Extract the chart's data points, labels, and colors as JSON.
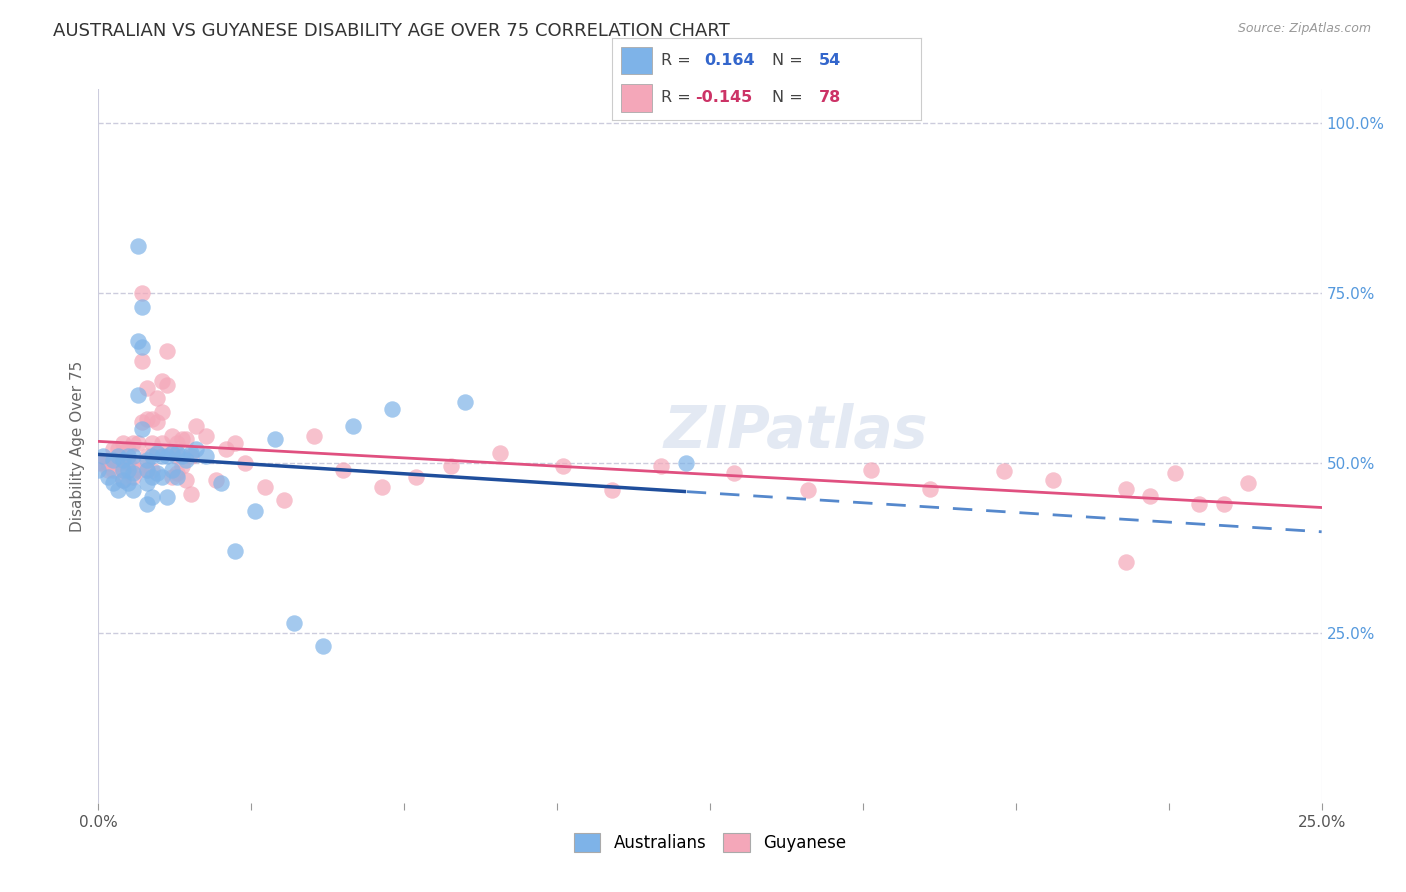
{
  "title": "AUSTRALIAN VS GUYANESE DISABILITY AGE OVER 75 CORRELATION CHART",
  "source": "Source: ZipAtlas.com",
  "ylabel": "Disability Age Over 75",
  "legend_blue_r": "0.164",
  "legend_blue_n": "54",
  "legend_pink_r": "-0.145",
  "legend_pink_n": "78",
  "legend_label_blue": "Australians",
  "legend_label_pink": "Guyanese",
  "blue_color": "#7EB3E8",
  "pink_color": "#F4A7B9",
  "trendline_blue_solid_color": "#1F4E9C",
  "trendline_blue_dash_color": "#5588CC",
  "trendline_pink_color": "#E05080",
  "background_color": "#FFFFFF",
  "grid_color": "#CCCCDD",
  "right_tick_color": "#5599DD",
  "watermark": "ZIPatlas",
  "xlim": [
    0.0,
    0.25
  ],
  "ylim": [
    0.0,
    1.05
  ],
  "yticks_right": [
    0.25,
    0.5,
    0.75,
    1.0
  ],
  "ytick_right_labels": [
    "25.0%",
    "50.0%",
    "75.0%",
    "100.0%"
  ],
  "blue_scatter_x": [
    0.0,
    0.001,
    0.002,
    0.003,
    0.003,
    0.004,
    0.004,
    0.005,
    0.005,
    0.005,
    0.006,
    0.006,
    0.006,
    0.007,
    0.007,
    0.007,
    0.008,
    0.008,
    0.008,
    0.009,
    0.009,
    0.009,
    0.01,
    0.01,
    0.01,
    0.01,
    0.011,
    0.011,
    0.011,
    0.012,
    0.012,
    0.013,
    0.013,
    0.014,
    0.014,
    0.015,
    0.015,
    0.016,
    0.016,
    0.017,
    0.018,
    0.019,
    0.02,
    0.022,
    0.025,
    0.028,
    0.032,
    0.036,
    0.04,
    0.046,
    0.052,
    0.06,
    0.075,
    0.12
  ],
  "blue_scatter_y": [
    0.49,
    0.51,
    0.48,
    0.505,
    0.47,
    0.51,
    0.46,
    0.505,
    0.49,
    0.475,
    0.51,
    0.49,
    0.47,
    0.51,
    0.485,
    0.46,
    0.82,
    0.68,
    0.6,
    0.73,
    0.67,
    0.55,
    0.505,
    0.49,
    0.47,
    0.44,
    0.51,
    0.48,
    0.45,
    0.515,
    0.485,
    0.51,
    0.48,
    0.51,
    0.45,
    0.515,
    0.49,
    0.515,
    0.48,
    0.51,
    0.505,
    0.515,
    0.52,
    0.51,
    0.47,
    0.37,
    0.43,
    0.535,
    0.265,
    0.23,
    0.555,
    0.58,
    0.59,
    0.5
  ],
  "pink_scatter_x": [
    0.0,
    0.001,
    0.002,
    0.002,
    0.003,
    0.003,
    0.004,
    0.004,
    0.005,
    0.005,
    0.005,
    0.006,
    0.006,
    0.007,
    0.007,
    0.007,
    0.008,
    0.008,
    0.009,
    0.009,
    0.009,
    0.01,
    0.01,
    0.01,
    0.01,
    0.011,
    0.011,
    0.011,
    0.012,
    0.012,
    0.012,
    0.013,
    0.013,
    0.013,
    0.014,
    0.014,
    0.015,
    0.015,
    0.015,
    0.016,
    0.016,
    0.016,
    0.017,
    0.017,
    0.018,
    0.018,
    0.019,
    0.019,
    0.02,
    0.022,
    0.024,
    0.026,
    0.028,
    0.03,
    0.034,
    0.038,
    0.044,
    0.05,
    0.058,
    0.065,
    0.072,
    0.082,
    0.095,
    0.105,
    0.115,
    0.13,
    0.145,
    0.158,
    0.17,
    0.185,
    0.195,
    0.21,
    0.215,
    0.22,
    0.225,
    0.23,
    0.21,
    0.235
  ],
  "pink_scatter_y": [
    0.5,
    0.5,
    0.5,
    0.49,
    0.52,
    0.49,
    0.52,
    0.5,
    0.53,
    0.49,
    0.475,
    0.52,
    0.5,
    0.53,
    0.5,
    0.48,
    0.53,
    0.49,
    0.75,
    0.65,
    0.56,
    0.61,
    0.565,
    0.51,
    0.49,
    0.565,
    0.53,
    0.49,
    0.595,
    0.56,
    0.515,
    0.62,
    0.575,
    0.53,
    0.665,
    0.615,
    0.54,
    0.515,
    0.48,
    0.53,
    0.51,
    0.485,
    0.535,
    0.495,
    0.535,
    0.475,
    0.51,
    0.455,
    0.555,
    0.54,
    0.475,
    0.52,
    0.53,
    0.5,
    0.465,
    0.445,
    0.54,
    0.49,
    0.465,
    0.48,
    0.495,
    0.515,
    0.495,
    0.46,
    0.495,
    0.485,
    0.46,
    0.49,
    0.462,
    0.488,
    0.475,
    0.462,
    0.452,
    0.485,
    0.44,
    0.44,
    0.355,
    0.47
  ]
}
